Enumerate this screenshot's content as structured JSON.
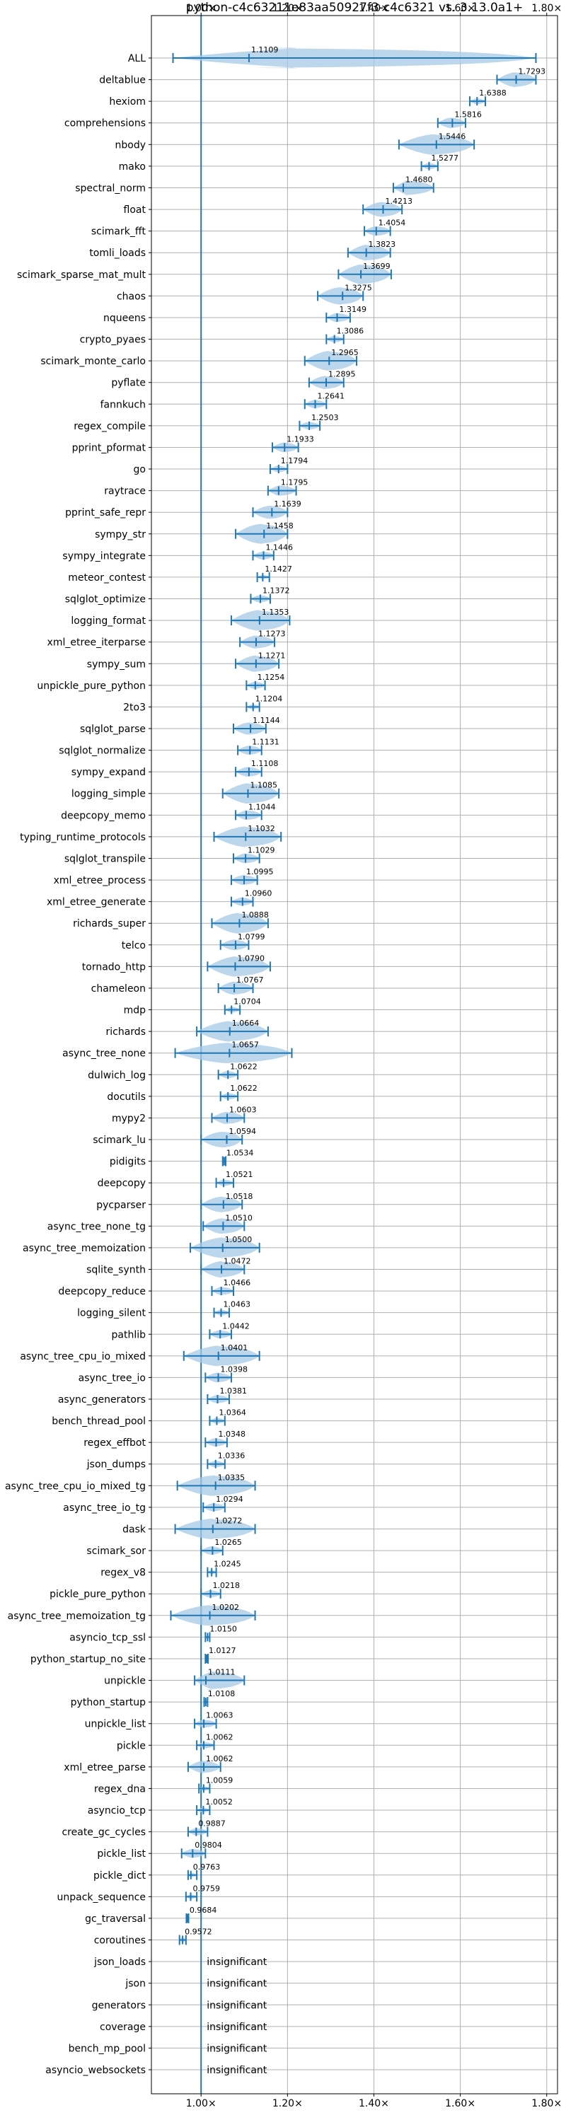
{
  "chart_data": {
    "type": "violin",
    "title": "python-c4c63211e83aa50927f3-c4c6321 vs. 3.13.0a1+",
    "x_ticks": [
      "1.00×",
      "1.20×",
      "1.40×",
      "1.60×",
      "1.80×"
    ],
    "x_tick_values": [
      1.0,
      1.2,
      1.4,
      1.6,
      1.8
    ],
    "xlim": [
      0.885,
      1.825
    ],
    "grid": true,
    "colors": {
      "line": "#1f77b4",
      "violin": "#a6c8e6",
      "grid": "#b0b0b0"
    },
    "benchmarks": [
      {
        "name": "ALL",
        "mean": 1.1109,
        "label": "1.1109",
        "lo": 0.935,
        "hi": 1.775
      },
      {
        "name": "deltablue",
        "mean": 1.7293,
        "label": "1.7293",
        "lo": 1.685,
        "hi": 1.775
      },
      {
        "name": "hexiom",
        "mean": 1.6388,
        "label": "1.6388",
        "lo": 1.622,
        "hi": 1.658
      },
      {
        "name": "comprehensions",
        "mean": 1.5816,
        "label": "1.5816",
        "lo": 1.548,
        "hi": 1.612
      },
      {
        "name": "nbody",
        "mean": 1.5446,
        "label": "1.5446",
        "lo": 1.458,
        "hi": 1.632
      },
      {
        "name": "mako",
        "mean": 1.5277,
        "label": "1.5277",
        "lo": 1.51,
        "hi": 1.548
      },
      {
        "name": "spectral_norm",
        "mean": 1.468,
        "label": "1.4680",
        "lo": 1.445,
        "hi": 1.538
      },
      {
        "name": "float",
        "mean": 1.4213,
        "label": "1.4213",
        "lo": 1.375,
        "hi": 1.465
      },
      {
        "name": "scimark_fft",
        "mean": 1.4054,
        "label": "1.4054",
        "lo": 1.378,
        "hi": 1.438
      },
      {
        "name": "tomli_loads",
        "mean": 1.3823,
        "label": "1.3823",
        "lo": 1.34,
        "hi": 1.438
      },
      {
        "name": "scimark_sparse_mat_mult",
        "mean": 1.3699,
        "label": "1.3699",
        "lo": 1.318,
        "hi": 1.44
      },
      {
        "name": "chaos",
        "mean": 1.3275,
        "label": "1.3275",
        "lo": 1.27,
        "hi": 1.375
      },
      {
        "name": "nqueens",
        "mean": 1.3149,
        "label": "1.3149",
        "lo": 1.29,
        "hi": 1.345
      },
      {
        "name": "crypto_pyaes",
        "mean": 1.3086,
        "label": "1.3086",
        "lo": 1.29,
        "hi": 1.33
      },
      {
        "name": "scimark_monte_carlo",
        "mean": 1.2965,
        "label": "1.2965",
        "lo": 1.24,
        "hi": 1.36
      },
      {
        "name": "pyflate",
        "mean": 1.2895,
        "label": "1.2895",
        "lo": 1.25,
        "hi": 1.33
      },
      {
        "name": "fannkuch",
        "mean": 1.2641,
        "label": "1.2641",
        "lo": 1.24,
        "hi": 1.29
      },
      {
        "name": "regex_compile",
        "mean": 1.2503,
        "label": "1.2503",
        "lo": 1.228,
        "hi": 1.275
      },
      {
        "name": "pprint_pformat",
        "mean": 1.1933,
        "label": "1.1933",
        "lo": 1.165,
        "hi": 1.225
      },
      {
        "name": "go",
        "mean": 1.1794,
        "label": "1.1794",
        "lo": 1.16,
        "hi": 1.2
      },
      {
        "name": "raytrace",
        "mean": 1.1795,
        "label": "1.1795",
        "lo": 1.155,
        "hi": 1.22
      },
      {
        "name": "pprint_safe_repr",
        "mean": 1.1639,
        "label": "1.1639",
        "lo": 1.12,
        "hi": 1.2
      },
      {
        "name": "sympy_str",
        "mean": 1.1458,
        "label": "1.1458",
        "lo": 1.08,
        "hi": 1.2
      },
      {
        "name": "sympy_integrate",
        "mean": 1.1446,
        "label": "1.1446",
        "lo": 1.12,
        "hi": 1.168
      },
      {
        "name": "meteor_contest",
        "mean": 1.1427,
        "label": "1.1427",
        "lo": 1.13,
        "hi": 1.158
      },
      {
        "name": "sqlglot_optimize",
        "mean": 1.1372,
        "label": "1.1372",
        "lo": 1.115,
        "hi": 1.16
      },
      {
        "name": "logging_format",
        "mean": 1.1353,
        "label": "1.1353",
        "lo": 1.07,
        "hi": 1.205
      },
      {
        "name": "xml_etree_iterparse",
        "mean": 1.1273,
        "label": "1.1273",
        "lo": 1.09,
        "hi": 1.17
      },
      {
        "name": "sympy_sum",
        "mean": 1.1271,
        "label": "1.1271",
        "lo": 1.08,
        "hi": 1.18
      },
      {
        "name": "unpickle_pure_python",
        "mean": 1.1254,
        "label": "1.1254",
        "lo": 1.105,
        "hi": 1.148
      },
      {
        "name": "2to3",
        "mean": 1.1204,
        "label": "1.1204",
        "lo": 1.105,
        "hi": 1.135
      },
      {
        "name": "sqlglot_parse",
        "mean": 1.1144,
        "label": "1.1144",
        "lo": 1.075,
        "hi": 1.15
      },
      {
        "name": "sqlglot_normalize",
        "mean": 1.1131,
        "label": "1.1131",
        "lo": 1.085,
        "hi": 1.14
      },
      {
        "name": "sympy_expand",
        "mean": 1.1108,
        "label": "1.1108",
        "lo": 1.08,
        "hi": 1.14
      },
      {
        "name": "logging_simple",
        "mean": 1.1085,
        "label": "1.1085",
        "lo": 1.05,
        "hi": 1.18
      },
      {
        "name": "deepcopy_memo",
        "mean": 1.1044,
        "label": "1.1044",
        "lo": 1.08,
        "hi": 1.14
      },
      {
        "name": "typing_runtime_protocols",
        "mean": 1.1032,
        "label": "1.1032",
        "lo": 1.03,
        "hi": 1.185
      },
      {
        "name": "sqlglot_transpile",
        "mean": 1.1029,
        "label": "1.1029",
        "lo": 1.075,
        "hi": 1.135
      },
      {
        "name": "xml_etree_process",
        "mean": 1.0995,
        "label": "1.0995",
        "lo": 1.07,
        "hi": 1.13
      },
      {
        "name": "xml_etree_generate",
        "mean": 1.096,
        "label": "1.0960",
        "lo": 1.07,
        "hi": 1.12
      },
      {
        "name": "richards_super",
        "mean": 1.0888,
        "label": "1.0888",
        "lo": 1.025,
        "hi": 1.155
      },
      {
        "name": "telco",
        "mean": 1.0799,
        "label": "1.0799",
        "lo": 1.045,
        "hi": 1.11
      },
      {
        "name": "tornado_http",
        "mean": 1.079,
        "label": "1.0790",
        "lo": 1.015,
        "hi": 1.16
      },
      {
        "name": "chameleon",
        "mean": 1.0767,
        "label": "1.0767",
        "lo": 1.04,
        "hi": 1.12
      },
      {
        "name": "mdp",
        "mean": 1.0704,
        "label": "1.0704",
        "lo": 1.055,
        "hi": 1.09
      },
      {
        "name": "richards",
        "mean": 1.0664,
        "label": "1.0664",
        "lo": 0.99,
        "hi": 1.155
      },
      {
        "name": "async_tree_none",
        "mean": 1.0657,
        "label": "1.0657",
        "lo": 0.94,
        "hi": 1.21
      },
      {
        "name": "dulwich_log",
        "mean": 1.0622,
        "label": "1.0622",
        "lo": 1.04,
        "hi": 1.085
      },
      {
        "name": "docutils",
        "mean": 1.0622,
        "label": "1.0622",
        "lo": 1.045,
        "hi": 1.085
      },
      {
        "name": "mypy2",
        "mean": 1.0603,
        "label": "1.0603",
        "lo": 1.025,
        "hi": 1.1
      },
      {
        "name": "scimark_lu",
        "mean": 1.0594,
        "label": "1.0594",
        "lo": 1.0,
        "hi": 1.095
      },
      {
        "name": "pidigits",
        "mean": 1.0534,
        "label": "1.0534",
        "lo": 1.05,
        "hi": 1.057
      },
      {
        "name": "deepcopy",
        "mean": 1.0521,
        "label": "1.0521",
        "lo": 1.035,
        "hi": 1.075
      },
      {
        "name": "pycparser",
        "mean": 1.0518,
        "label": "1.0518",
        "lo": 1.0,
        "hi": 1.095
      },
      {
        "name": "async_tree_none_tg",
        "mean": 1.051,
        "label": "1.0510",
        "lo": 1.005,
        "hi": 1.1
      },
      {
        "name": "async_tree_memoization",
        "mean": 1.05,
        "label": "1.0500",
        "lo": 0.975,
        "hi": 1.135
      },
      {
        "name": "sqlite_synth",
        "mean": 1.0472,
        "label": "1.0472",
        "lo": 1.0,
        "hi": 1.1
      },
      {
        "name": "deepcopy_reduce",
        "mean": 1.0466,
        "label": "1.0466",
        "lo": 1.025,
        "hi": 1.075
      },
      {
        "name": "logging_silent",
        "mean": 1.0463,
        "label": "1.0463",
        "lo": 1.03,
        "hi": 1.065
      },
      {
        "name": "pathlib",
        "mean": 1.0442,
        "label": "1.0442",
        "lo": 1.02,
        "hi": 1.07
      },
      {
        "name": "async_tree_cpu_io_mixed",
        "mean": 1.0401,
        "label": "1.0401",
        "lo": 0.96,
        "hi": 1.135
      },
      {
        "name": "async_tree_io",
        "mean": 1.0398,
        "label": "1.0398",
        "lo": 1.01,
        "hi": 1.07
      },
      {
        "name": "async_generators",
        "mean": 1.0381,
        "label": "1.0381",
        "lo": 1.015,
        "hi": 1.065
      },
      {
        "name": "bench_thread_pool",
        "mean": 1.0364,
        "label": "1.0364",
        "lo": 1.02,
        "hi": 1.055
      },
      {
        "name": "regex_effbot",
        "mean": 1.0348,
        "label": "1.0348",
        "lo": 1.01,
        "hi": 1.06
      },
      {
        "name": "json_dumps",
        "mean": 1.0336,
        "label": "1.0336",
        "lo": 1.015,
        "hi": 1.055
      },
      {
        "name": "async_tree_cpu_io_mixed_tg",
        "mean": 1.0335,
        "label": "1.0335",
        "lo": 0.945,
        "hi": 1.125
      },
      {
        "name": "async_tree_io_tg",
        "mean": 1.0294,
        "label": "1.0294",
        "lo": 1.005,
        "hi": 1.055
      },
      {
        "name": "dask",
        "mean": 1.0272,
        "label": "1.0272",
        "lo": 0.94,
        "hi": 1.125
      },
      {
        "name": "scimark_sor",
        "mean": 1.0265,
        "label": "1.0265",
        "lo": 1.0,
        "hi": 1.05
      },
      {
        "name": "regex_v8",
        "mean": 1.0245,
        "label": "1.0245",
        "lo": 1.015,
        "hi": 1.035
      },
      {
        "name": "pickle_pure_python",
        "mean": 1.0218,
        "label": "1.0218",
        "lo": 1.0,
        "hi": 1.045
      },
      {
        "name": "async_tree_memoization_tg",
        "mean": 1.0202,
        "label": "1.0202",
        "lo": 0.93,
        "hi": 1.125
      },
      {
        "name": "asyncio_tcp_ssl",
        "mean": 1.015,
        "label": "1.0150",
        "lo": 1.01,
        "hi": 1.02
      },
      {
        "name": "python_startup_no_site",
        "mean": 1.0127,
        "label": "1.0127",
        "lo": 1.01,
        "hi": 1.016
      },
      {
        "name": "unpickle",
        "mean": 1.0111,
        "label": "1.0111",
        "lo": 0.985,
        "hi": 1.1
      },
      {
        "name": "python_startup",
        "mean": 1.0108,
        "label": "1.0108",
        "lo": 1.007,
        "hi": 1.015
      },
      {
        "name": "unpickle_list",
        "mean": 1.0063,
        "label": "1.0063",
        "lo": 0.985,
        "hi": 1.035
      },
      {
        "name": "pickle",
        "mean": 1.0062,
        "label": "1.0062",
        "lo": 0.99,
        "hi": 1.03
      },
      {
        "name": "xml_etree_parse",
        "mean": 1.0062,
        "label": "1.0062",
        "lo": 0.97,
        "hi": 1.045
      },
      {
        "name": "regex_dna",
        "mean": 1.0059,
        "label": "1.0059",
        "lo": 0.995,
        "hi": 1.02
      },
      {
        "name": "asyncio_tcp",
        "mean": 1.0052,
        "label": "1.0052",
        "lo": 0.99,
        "hi": 1.02
      },
      {
        "name": "create_gc_cycles",
        "mean": 0.9887,
        "label": "0.9887",
        "lo": 0.97,
        "hi": 1.015
      },
      {
        "name": "pickle_list",
        "mean": 0.9804,
        "label": "0.9804",
        "lo": 0.955,
        "hi": 1.01
      },
      {
        "name": "pickle_dict",
        "mean": 0.9763,
        "label": "0.9763",
        "lo": 0.97,
        "hi": 0.99
      },
      {
        "name": "unpack_sequence",
        "mean": 0.9759,
        "label": "0.9759",
        "lo": 0.965,
        "hi": 0.99
      },
      {
        "name": "gc_traversal",
        "mean": 0.9684,
        "label": "0.9684",
        "lo": 0.966,
        "hi": 0.971
      },
      {
        "name": "coroutines",
        "mean": 0.9572,
        "label": "0.9572",
        "lo": 0.95,
        "hi": 0.965
      },
      {
        "name": "json_loads",
        "label": "insignificant"
      },
      {
        "name": "json",
        "label": "insignificant"
      },
      {
        "name": "generators",
        "label": "insignificant"
      },
      {
        "name": "coverage",
        "label": "insignificant"
      },
      {
        "name": "bench_mp_pool",
        "label": "insignificant"
      },
      {
        "name": "asyncio_websockets",
        "label": "insignificant"
      }
    ]
  }
}
